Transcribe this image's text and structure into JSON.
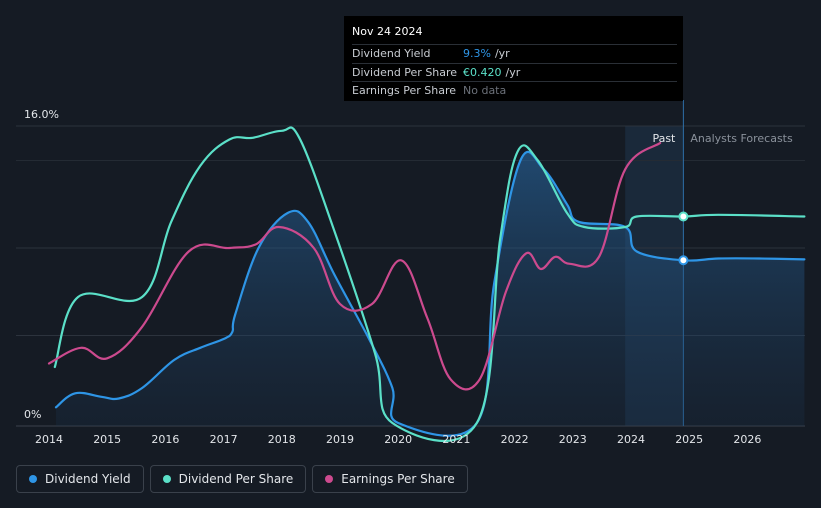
{
  "chart_data": {
    "type": "line",
    "y_top_label": "16.0%",
    "y_bottom_label": "0%",
    "ylim": [
      0,
      16
    ],
    "x_ticks": [
      "2014",
      "2015",
      "2016",
      "2017",
      "2018",
      "2019",
      "2020",
      "2021",
      "2022",
      "2023",
      "2024",
      "2025",
      "2026"
    ],
    "past_label": "Past",
    "forecast_label": "Analysts Forecasts",
    "hover_x": 2024.9,
    "series": [
      {
        "name": "Dividend Yield",
        "color": "#2e95e6",
        "filled": true,
        "points": [
          [
            2014.12,
            0.9
          ],
          [
            2014.45,
            1.7
          ],
          [
            2014.9,
            1.5
          ],
          [
            2015.2,
            1.4
          ],
          [
            2015.6,
            2.0
          ],
          [
            2016.15,
            3.6
          ],
          [
            2016.6,
            4.3
          ],
          [
            2017.0,
            4.8
          ],
          [
            2017.15,
            5.2
          ],
          [
            2017.2,
            6.2
          ],
          [
            2017.6,
            10.0
          ],
          [
            2018.1,
            12.0
          ],
          [
            2018.45,
            11.5
          ],
          [
            2018.9,
            8.5
          ],
          [
            2019.5,
            4.8
          ],
          [
            2019.9,
            2.0
          ],
          [
            2020.0,
            0.0
          ],
          [
            2021.35,
            0.0
          ],
          [
            2021.65,
            8.0
          ],
          [
            2022.1,
            15.0
          ],
          [
            2022.5,
            14.5
          ],
          [
            2022.9,
            12.5
          ],
          [
            2023.1,
            11.5
          ],
          [
            2023.9,
            11.2
          ],
          [
            2024.1,
            9.8
          ],
          [
            2024.9,
            9.3
          ],
          [
            2025.5,
            9.4
          ],
          [
            2026.2,
            9.4
          ],
          [
            2026.98,
            9.35
          ]
        ]
      },
      {
        "name": "Dividend Per Share",
        "color": "#5be0c8",
        "filled": false,
        "points": [
          [
            2014.1,
            3.2
          ],
          [
            2014.5,
            7.2
          ],
          [
            2015.6,
            7.2
          ],
          [
            2016.1,
            11.5
          ],
          [
            2016.6,
            14.7
          ],
          [
            2017.1,
            16.2
          ],
          [
            2017.5,
            16.3
          ],
          [
            2018.0,
            16.7
          ],
          [
            2018.3,
            16.3
          ],
          [
            2018.9,
            11.0
          ],
          [
            2019.6,
            4.0
          ],
          [
            2019.9,
            0.0
          ],
          [
            2021.35,
            0.0
          ],
          [
            2021.75,
            10.5
          ],
          [
            2022.05,
            15.5
          ],
          [
            2022.4,
            15.0
          ],
          [
            2022.9,
            12.0
          ],
          [
            2023.2,
            11.2
          ],
          [
            2023.9,
            11.2
          ],
          [
            2024.1,
            11.8
          ],
          [
            2024.9,
            11.8
          ],
          [
            2025.5,
            11.9
          ],
          [
            2026.98,
            11.8
          ]
        ]
      },
      {
        "name": "Earnings Per Share",
        "color": "#cc4a8e",
        "filled": false,
        "points": [
          [
            2014.0,
            3.4
          ],
          [
            2014.55,
            4.3
          ],
          [
            2015.0,
            3.7
          ],
          [
            2015.6,
            5.5
          ],
          [
            2016.4,
            9.8
          ],
          [
            2017.1,
            10.0
          ],
          [
            2017.55,
            10.2
          ],
          [
            2017.95,
            11.2
          ],
          [
            2018.55,
            10.0
          ],
          [
            2019.0,
            6.8
          ],
          [
            2019.55,
            6.8
          ],
          [
            2020.05,
            9.3
          ],
          [
            2020.5,
            6.0
          ],
          [
            2020.9,
            2.5
          ],
          [
            2021.4,
            2.5
          ],
          [
            2021.85,
            7.5
          ],
          [
            2022.2,
            9.7
          ],
          [
            2022.45,
            8.8
          ],
          [
            2022.7,
            9.5
          ],
          [
            2022.95,
            9.1
          ],
          [
            2023.45,
            9.5
          ],
          [
            2023.9,
            14.5
          ],
          [
            2024.5,
            16.0
          ]
        ]
      }
    ]
  },
  "tooltip": {
    "date": "Nov 24 2024",
    "rows": [
      {
        "label": "Dividend Yield",
        "value": "9.3%",
        "unit": "/yr",
        "color": "#2e95e6"
      },
      {
        "label": "Dividend Per Share",
        "value": "€0.420",
        "unit": "/yr",
        "color": "#5be0c8"
      },
      {
        "label": "Earnings Per Share",
        "nodata": "No data"
      }
    ]
  },
  "legend": [
    {
      "label": "Dividend Yield",
      "color": "#2e95e6"
    },
    {
      "label": "Dividend Per Share",
      "color": "#5be0c8"
    },
    {
      "label": "Earnings Per Share",
      "color": "#cc4a8e"
    }
  ]
}
